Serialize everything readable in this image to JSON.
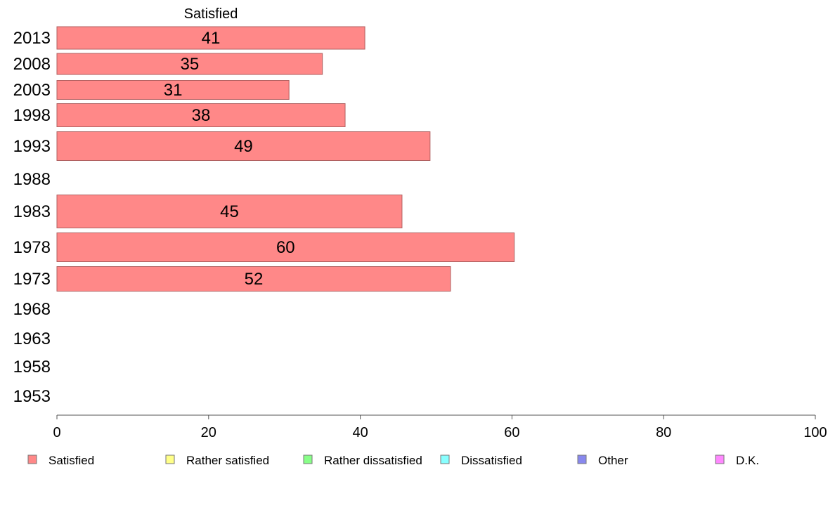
{
  "chart_data": {
    "type": "bar",
    "orientation": "horizontal",
    "series_header": "Satisfied",
    "categories": [
      "2013",
      "2008",
      "2003",
      "1998",
      "1993",
      "1988",
      "1983",
      "1978",
      "1973",
      "1968",
      "1963",
      "1958",
      "1953"
    ],
    "series": [
      {
        "name": "Satisfied",
        "color": "#ff8888",
        "values": [
          41,
          35,
          31,
          38,
          49,
          null,
          45,
          60,
          52,
          null,
          null,
          null,
          null
        ],
        "precise_values": [
          40.6,
          35.0,
          30.6,
          38.0,
          49.2,
          null,
          45.5,
          60.3,
          51.9,
          null,
          null,
          null,
          null
        ]
      }
    ],
    "xlim": [
      0,
      100
    ],
    "x_ticks": [
      "0",
      "20",
      "40",
      "60",
      "80",
      "100"
    ],
    "grid": false,
    "legend_position": "bottom",
    "legend": [
      {
        "label": "Satisfied",
        "color": "#ff8888"
      },
      {
        "label": "Rather satisfied",
        "color": "#ffff88"
      },
      {
        "label": "Rather dissatisfied",
        "color": "#88ff88"
      },
      {
        "label": "Dissatisfied",
        "color": "#88ffff"
      },
      {
        "label": "Other",
        "color": "#8888ee"
      },
      {
        "label": "D.K.",
        "color": "#ff88ff"
      }
    ]
  }
}
